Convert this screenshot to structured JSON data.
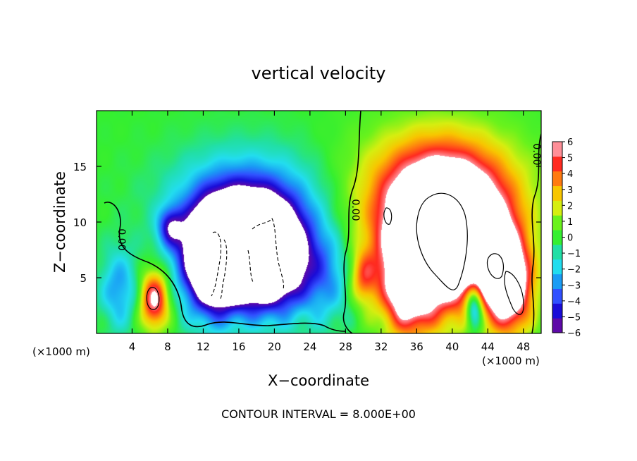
{
  "chart_data": {
    "type": "heatmap",
    "title": "vertical velocity",
    "xlabel": "X−coordinate",
    "ylabel": "Z−coordinate",
    "x_unit_left": "(×1000 m)",
    "x_unit_right": "(×1000 m)",
    "xlim": [
      0,
      50
    ],
    "ylim": [
      0,
      20
    ],
    "x_ticks": [
      4,
      8,
      12,
      16,
      20,
      24,
      28,
      32,
      36,
      40,
      44,
      48
    ],
    "y_ticks": [
      5,
      10,
      15
    ],
    "footer": "CONTOUR INTERVAL = 8.000E+00",
    "colorbar": {
      "min": -6,
      "max": 6,
      "labels": [
        "6",
        "5",
        "4",
        "3",
        "2",
        "1",
        "0",
        "−1",
        "−2",
        "−3",
        "−4",
        "−5",
        "−6"
      ],
      "colors": [
        "#5e0aa8",
        "#1a0cd8",
        "#3050ff",
        "#1a9cf5",
        "#22ddef",
        "#21dfa6",
        "#35ef30",
        "#6af21c",
        "#d6ee10",
        "#f8c600",
        "#ff7a10",
        "#ff2a20",
        "#ff8f98"
      ]
    },
    "contour_labels": [
      "0.00",
      "0.00",
      "0.00"
    ],
    "cells": [
      {
        "x": 16,
        "z": 8,
        "w": -12,
        "sx": 3.6,
        "sz": 2.8
      },
      {
        "x": 19.5,
        "z": 6.5,
        "w": -9,
        "sx": 3.2,
        "sz": 3.2
      },
      {
        "x": 13,
        "z": 6,
        "w": -8,
        "sx": 2.2,
        "sz": 3.2
      },
      {
        "x": 17,
        "z": 12,
        "w": -3.5,
        "sx": 6,
        "sz": 3.2
      },
      {
        "x": 8.3,
        "z": 9.5,
        "w": -4,
        "sx": 1,
        "sz": 1.2
      },
      {
        "x": 6.5,
        "z": 3,
        "w": 6.5,
        "sx": 1.1,
        "sz": 1.8
      },
      {
        "x": 39,
        "z": 8.5,
        "w": 13,
        "sx": 4.5,
        "sz": 4.2
      },
      {
        "x": 38.5,
        "z": 13,
        "w": 4.5,
        "sx": 6.5,
        "sz": 3.8
      },
      {
        "x": 35,
        "z": 4,
        "w": 6,
        "sx": 2,
        "sz": 3
      },
      {
        "x": 46.5,
        "z": 4,
        "w": 7.5,
        "sx": 1.8,
        "sz": 2.8
      },
      {
        "x": 44.5,
        "z": 7,
        "w": 4,
        "sx": 2,
        "sz": 2.8
      },
      {
        "x": 30,
        "z": 5,
        "w": 3.5,
        "sx": 1,
        "sz": 1.6
      },
      {
        "x": 42.5,
        "z": 2.5,
        "w": -6,
        "sx": 0.7,
        "sz": 1.5
      },
      {
        "x": 2.5,
        "z": 4,
        "w": -3,
        "sx": 1.5,
        "sz": 2.5
      },
      {
        "x": 26,
        "z": 5,
        "w": -2.5,
        "sx": 2,
        "sz": 3
      }
    ]
  }
}
